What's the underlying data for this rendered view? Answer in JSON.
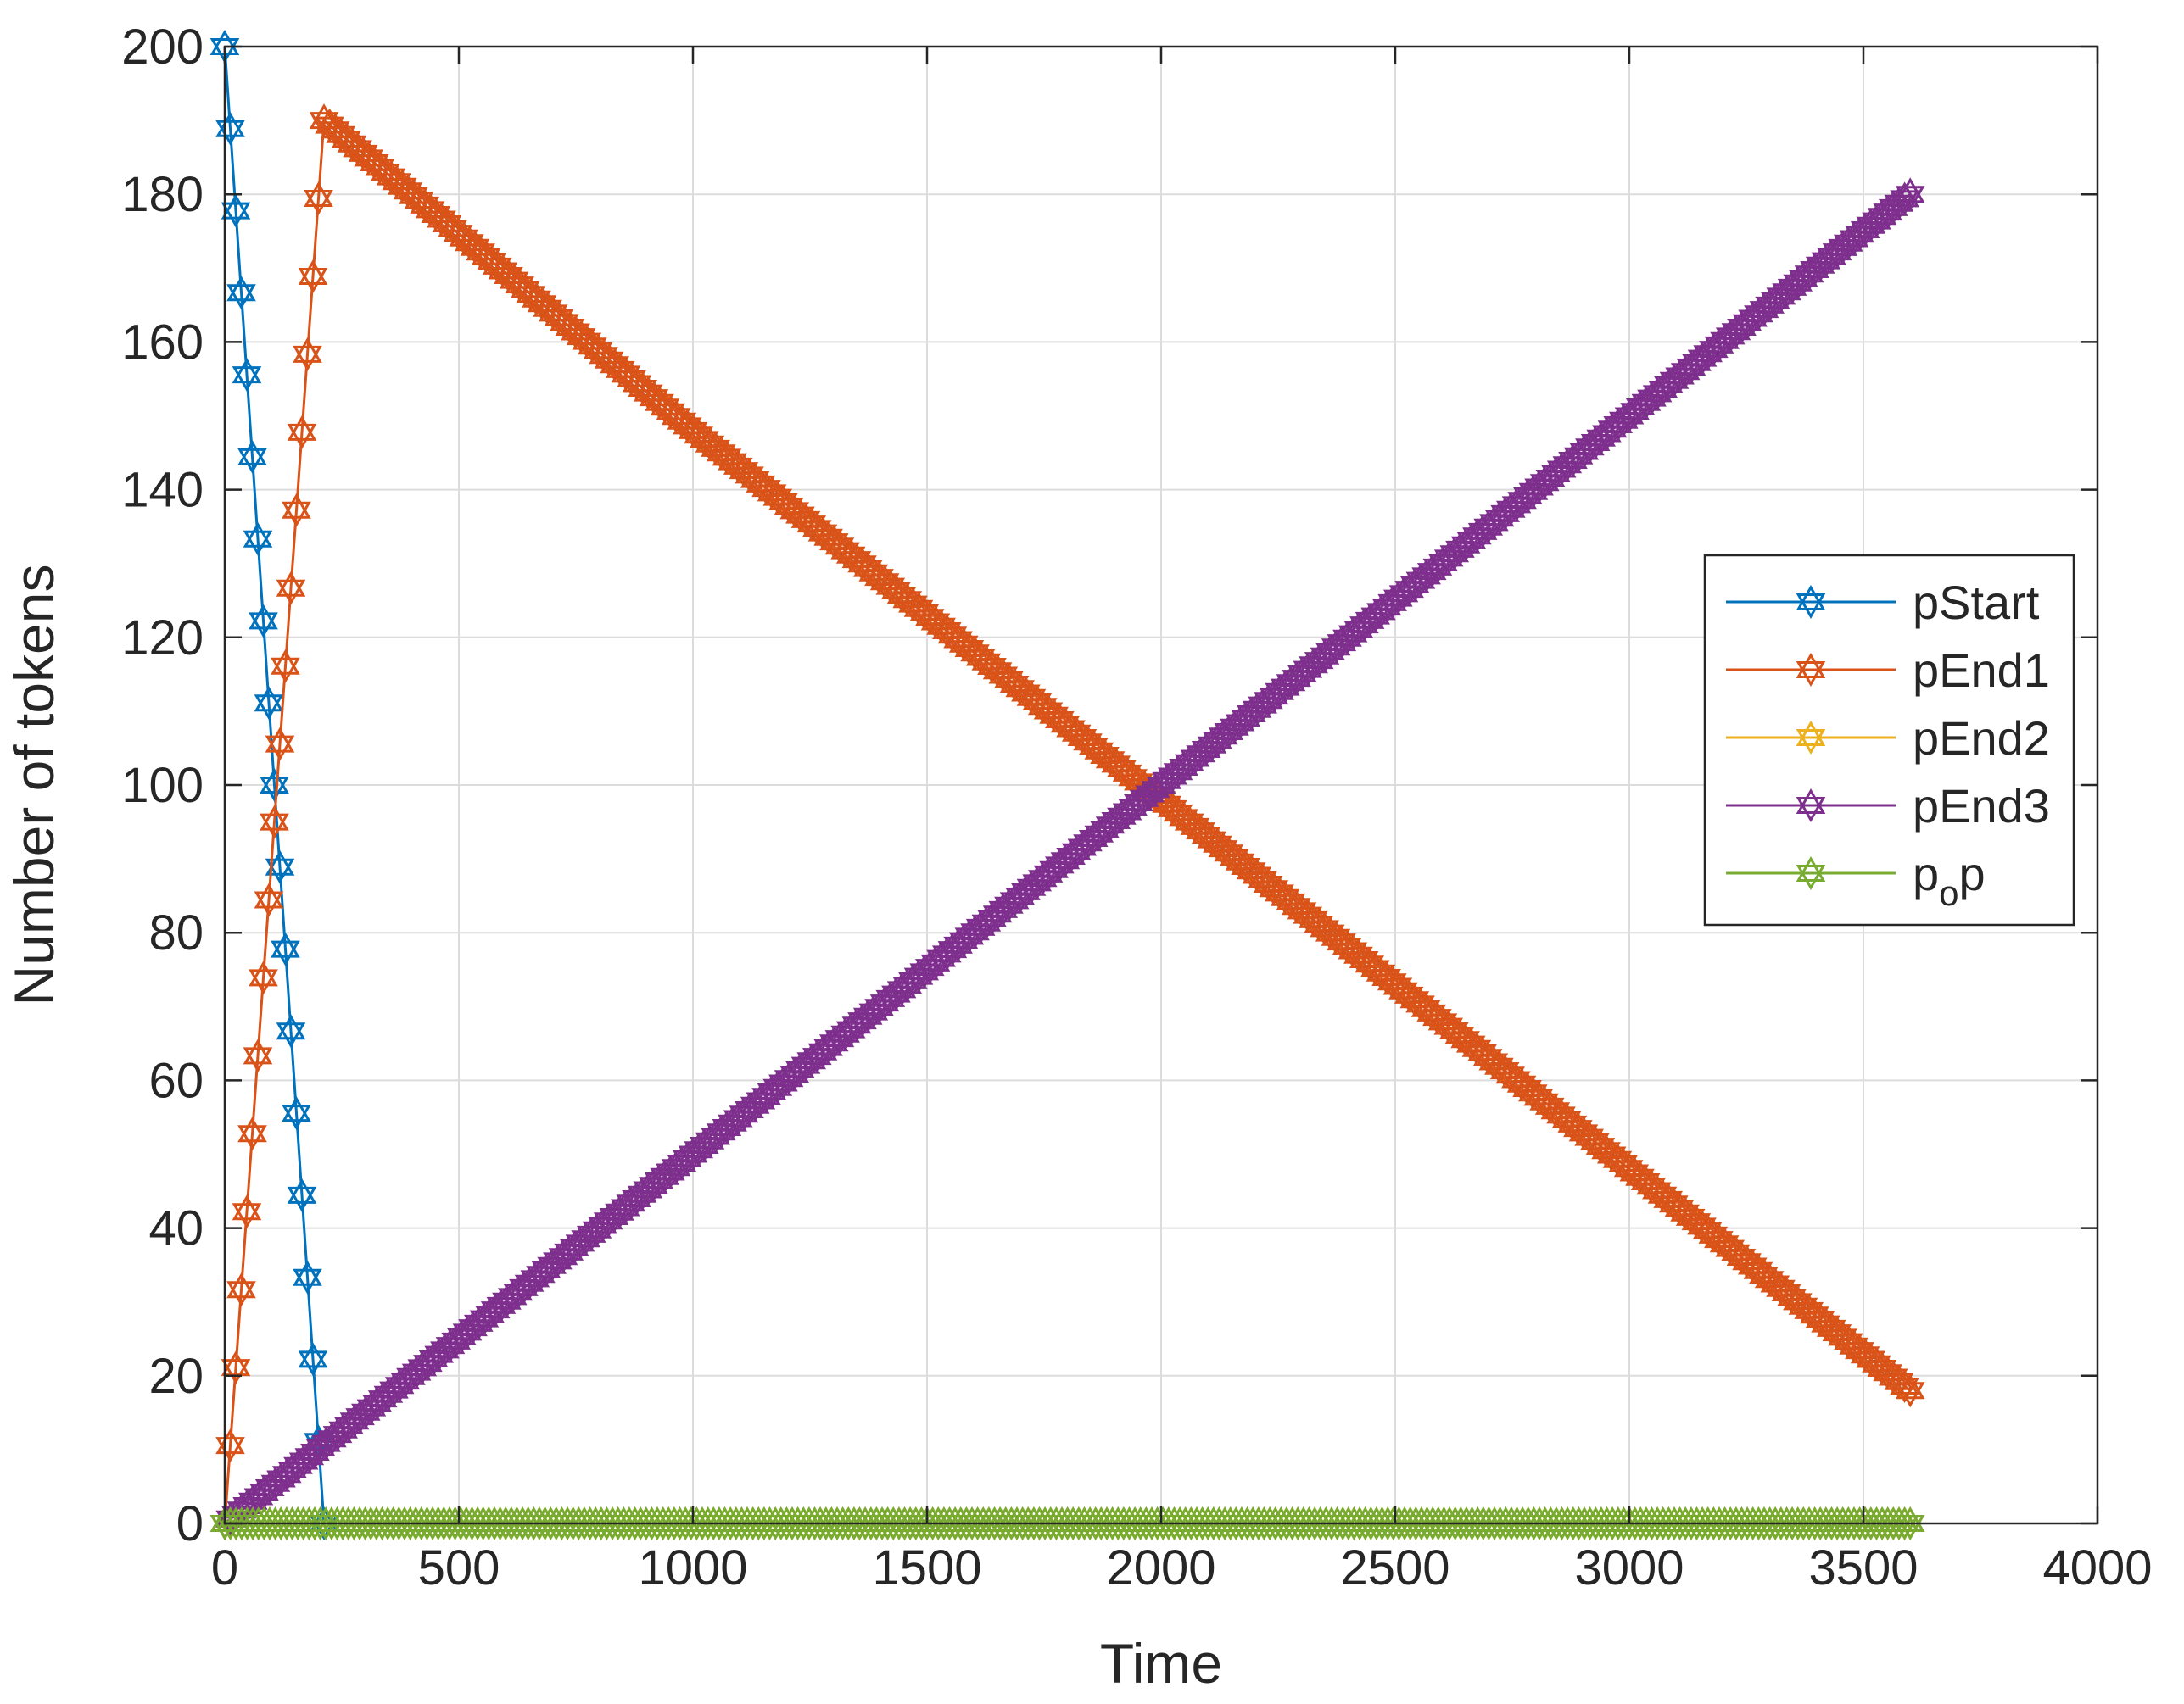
{
  "chart_data": {
    "type": "line",
    "xlabel": "Time",
    "ylabel": "Number of tokens",
    "xlim": [
      0,
      4000
    ],
    "ylim": [
      0,
      200
    ],
    "xticks": [
      "0",
      "500",
      "1000",
      "1500",
      "2000",
      "2500",
      "3000",
      "3500",
      "4000"
    ],
    "yticks": [
      "0",
      "20",
      "40",
      "60",
      "80",
      "100",
      "120",
      "140",
      "160",
      "180",
      "200"
    ],
    "grid": true,
    "box": true,
    "marker": "hexagram",
    "legend_position": "right, mid-height",
    "legend": [
      {
        "label": "pStart",
        "color": "#0072BD"
      },
      {
        "label": "pEnd1",
        "color": "#D95319"
      },
      {
        "label": "pEnd2",
        "color": "#EDB120"
      },
      {
        "label": "pEnd3",
        "color": "#7E2F8E"
      },
      {
        "label_main": "p",
        "label_sub": "o",
        "label_tail": "p",
        "color": "#77AC30"
      }
    ],
    "series": [
      {
        "key": "pStart",
        "color": "#0072BD",
        "x": [
          0,
          212
        ],
        "y": [
          200,
          0
        ]
      },
      {
        "key": "pEnd1",
        "color": "#D95319",
        "x": [
          0,
          212,
          1000,
          2000,
          3600
        ],
        "y": [
          0,
          190,
          148,
          98,
          18
        ]
      },
      {
        "key": "pEnd2",
        "color": "#EDB120",
        "x": [
          0,
          3600
        ],
        "y": [
          0,
          0
        ]
      },
      {
        "key": "pEnd3",
        "color": "#7E2F8E",
        "x": [
          0,
          1000,
          2000,
          3000,
          3600
        ],
        "y": [
          0,
          50,
          100,
          150,
          180
        ]
      },
      {
        "key": "pop",
        "color": "#77AC30",
        "x": [
          0,
          3600
        ],
        "y": [
          0,
          0
        ]
      }
    ]
  }
}
